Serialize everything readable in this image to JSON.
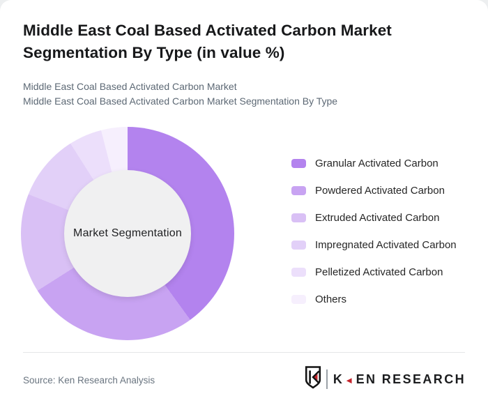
{
  "header": {
    "title": "Middle East Coal Based Activated Carbon Market Segmentation By Type (in value %)",
    "subtitle_line1": "Middle East Coal Based Activated Carbon Market",
    "subtitle_line2": "Middle East Coal Based Activated Carbon Market Segmentation By Type"
  },
  "chart_data": {
    "type": "pie",
    "variant": "donut",
    "title": "Middle East Coal Based Activated Carbon Market Segmentation By Type (in value %)",
    "center_label": "Market Segmentation",
    "start_angle_deg": 0,
    "direction": "clockwise",
    "legend_position": "right",
    "categories": [
      "Granular Activated Carbon",
      "Powdered Activated Carbon",
      "Extruded Activated Carbon",
      "Impregnated Activated Carbon",
      "Pelletized Activated Carbon",
      "Others"
    ],
    "values": [
      40,
      26,
      15,
      10,
      5,
      4
    ],
    "colors": [
      "#b383ee",
      "#c8a3f2",
      "#d9c0f5",
      "#e2d0f8",
      "#ecdffb",
      "#f6effd"
    ],
    "hole_color": "#f0f0f1"
  },
  "footer": {
    "source": "Source: Ken Research Analysis",
    "brand_first_letter": "K",
    "brand_rest": "EN RESEARCH",
    "brand_triangle": "◄",
    "brand_red": "#c5252c"
  }
}
